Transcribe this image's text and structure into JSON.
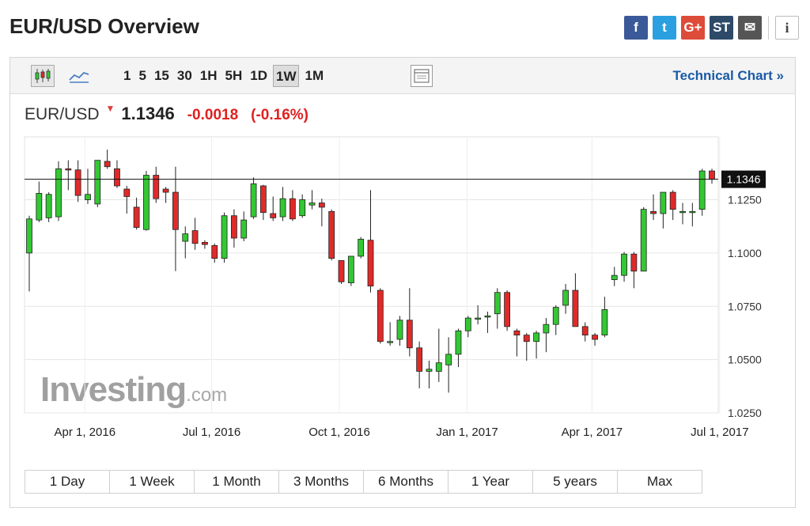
{
  "page_title": "EUR/USD Overview",
  "share_icons": [
    {
      "name": "facebook-icon",
      "glyph": "f",
      "color": "#3b5998"
    },
    {
      "name": "twitter-icon",
      "glyph": "t",
      "color": "#2ba0e0"
    },
    {
      "name": "google-plus-icon",
      "glyph": "G+",
      "color": "#dd4b39"
    },
    {
      "name": "stocktwits-icon",
      "glyph": "ST",
      "color": "#2d4a69"
    },
    {
      "name": "email-icon",
      "glyph": "✉",
      "color": "#555555"
    }
  ],
  "info_glyph": "i",
  "toolbar": {
    "periods": [
      "1",
      "5",
      "15",
      "30",
      "1H",
      "5H",
      "1D",
      "1W",
      "1M"
    ],
    "active_period": "1W",
    "technical_chart": "Technical Chart »"
  },
  "quote": {
    "symbol": "EUR/USD",
    "price": "1.1346",
    "change": "-0.0018",
    "change_pct": "(-0.16%)"
  },
  "timeframes": [
    "1 Day",
    "1 Week",
    "1 Month",
    "3 Months",
    "6 Months",
    "1 Year",
    "5 years",
    "Max"
  ],
  "watermark": {
    "main": "Investing",
    "suffix": ".com"
  },
  "colors": {
    "up": "#33c833",
    "down": "#e02a2a",
    "accent": "#1a5aa6"
  },
  "chart_data": {
    "type": "candlestick",
    "xlabel": "",
    "ylabel": "",
    "ylim": [
      1.025,
      1.1545
    ],
    "yticks": [
      "1.0250",
      "1.0500",
      "1.0750",
      "1.1000",
      "1.1250"
    ],
    "xticks": [
      "Apr 1, 2016",
      "Jul 1, 2016",
      "Oct 1, 2016",
      "Jan 1, 2017",
      "Apr 1, 2017",
      "Jul 1, 2017"
    ],
    "last_price_label": "1.1346",
    "last_price": 1.1346,
    "grid": true,
    "candles": [
      {
        "o": 1.1,
        "h": 1.1175,
        "l": 1.082,
        "c": 1.116
      },
      {
        "o": 1.1155,
        "h": 1.1335,
        "l": 1.1145,
        "c": 1.128
      },
      {
        "o": 1.1165,
        "h": 1.1285,
        "l": 1.1145,
        "c": 1.1275
      },
      {
        "o": 1.117,
        "h": 1.143,
        "l": 1.115,
        "c": 1.1395
      },
      {
        "o": 1.1395,
        "h": 1.1435,
        "l": 1.1295,
        "c": 1.139
      },
      {
        "o": 1.139,
        "h": 1.1435,
        "l": 1.124,
        "c": 1.127
      },
      {
        "o": 1.125,
        "h": 1.1395,
        "l": 1.123,
        "c": 1.1275
      },
      {
        "o": 1.123,
        "h": 1.1435,
        "l": 1.1215,
        "c": 1.1435
      },
      {
        "o": 1.143,
        "h": 1.1485,
        "l": 1.1395,
        "c": 1.1405
      },
      {
        "o": 1.1395,
        "h": 1.1435,
        "l": 1.1305,
        "c": 1.1315
      },
      {
        "o": 1.13,
        "h": 1.1315,
        "l": 1.1185,
        "c": 1.1265
      },
      {
        "o": 1.1215,
        "h": 1.126,
        "l": 1.111,
        "c": 1.112
      },
      {
        "o": 1.111,
        "h": 1.1385,
        "l": 1.1105,
        "c": 1.1365
      },
      {
        "o": 1.1365,
        "h": 1.1405,
        "l": 1.1235,
        "c": 1.1255
      },
      {
        "o": 1.13,
        "h": 1.131,
        "l": 1.1235,
        "c": 1.1285
      },
      {
        "o": 1.1285,
        "h": 1.1405,
        "l": 1.0915,
        "c": 1.111
      },
      {
        "o": 1.1055,
        "h": 1.1125,
        "l": 1.0975,
        "c": 1.109
      },
      {
        "o": 1.1105,
        "h": 1.1165,
        "l": 1.1015,
        "c": 1.1045
      },
      {
        "o": 1.105,
        "h": 1.106,
        "l": 1.102,
        "c": 1.104
      },
      {
        "o": 1.1035,
        "h": 1.1045,
        "l": 1.0955,
        "c": 1.0975
      },
      {
        "o": 1.0975,
        "h": 1.119,
        "l": 1.0955,
        "c": 1.1175
      },
      {
        "o": 1.1175,
        "h": 1.1205,
        "l": 1.1025,
        "c": 1.107
      },
      {
        "o": 1.107,
        "h": 1.1195,
        "l": 1.1055,
        "c": 1.1155
      },
      {
        "o": 1.117,
        "h": 1.1355,
        "l": 1.116,
        "c": 1.1325
      },
      {
        "o": 1.1315,
        "h": 1.132,
        "l": 1.1155,
        "c": 1.119
      },
      {
        "o": 1.1185,
        "h": 1.1265,
        "l": 1.115,
        "c": 1.1165
      },
      {
        "o": 1.117,
        "h": 1.131,
        "l": 1.115,
        "c": 1.1255
      },
      {
        "o": 1.1255,
        "h": 1.1295,
        "l": 1.115,
        "c": 1.116
      },
      {
        "o": 1.1175,
        "h": 1.1275,
        "l": 1.1165,
        "c": 1.125
      },
      {
        "o": 1.1225,
        "h": 1.1295,
        "l": 1.1205,
        "c": 1.1235
      },
      {
        "o": 1.1235,
        "h": 1.1255,
        "l": 1.1125,
        "c": 1.1215
      },
      {
        "o": 1.1195,
        "h": 1.1205,
        "l": 1.0965,
        "c": 1.0975
      },
      {
        "o": 1.0965,
        "h": 1.0965,
        "l": 1.0855,
        "c": 1.0865
      },
      {
        "o": 1.086,
        "h": 1.0985,
        "l": 1.0845,
        "c": 1.0985
      },
      {
        "o": 1.0985,
        "h": 1.1075,
        "l": 1.0975,
        "c": 1.1065
      },
      {
        "o": 1.106,
        "h": 1.1295,
        "l": 1.0815,
        "c": 1.0845
      },
      {
        "o": 1.0825,
        "h": 1.0835,
        "l": 1.0575,
        "c": 1.0585
      },
      {
        "o": 1.0585,
        "h": 1.0675,
        "l": 1.0565,
        "c": 1.0585
      },
      {
        "o": 1.0595,
        "h": 1.0705,
        "l": 1.0565,
        "c": 1.0685
      },
      {
        "o": 1.0685,
        "h": 1.0835,
        "l": 1.0515,
        "c": 1.0555
      },
      {
        "o": 1.0555,
        "h": 1.0585,
        "l": 1.0365,
        "c": 1.0445
      },
      {
        "o": 1.0445,
        "h": 1.0495,
        "l": 1.0365,
        "c": 1.0455
      },
      {
        "o": 1.0445,
        "h": 1.0645,
        "l": 1.0395,
        "c": 1.0485
      },
      {
        "o": 1.0475,
        "h": 1.0605,
        "l": 1.0345,
        "c": 1.0525
      },
      {
        "o": 1.0525,
        "h": 1.0645,
        "l": 1.0465,
        "c": 1.0635
      },
      {
        "o": 1.0635,
        "h": 1.0705,
        "l": 1.0605,
        "c": 1.0695
      },
      {
        "o": 1.0695,
        "h": 1.0755,
        "l": 1.0665,
        "c": 1.0695
      },
      {
        "o": 1.0705,
        "h": 1.0725,
        "l": 1.0625,
        "c": 1.0705
      },
      {
        "o": 1.0715,
        "h": 1.0835,
        "l": 1.0645,
        "c": 1.0815
      },
      {
        "o": 1.0815,
        "h": 1.0825,
        "l": 1.0635,
        "c": 1.0655
      },
      {
        "o": 1.0635,
        "h": 1.0645,
        "l": 1.0515,
        "c": 1.0615
      },
      {
        "o": 1.0615,
        "h": 1.0625,
        "l": 1.0495,
        "c": 1.0585
      },
      {
        "o": 1.0585,
        "h": 1.0635,
        "l": 1.0505,
        "c": 1.0625
      },
      {
        "o": 1.0625,
        "h": 1.0695,
        "l": 1.0535,
        "c": 1.0665
      },
      {
        "o": 1.0665,
        "h": 1.0755,
        "l": 1.0615,
        "c": 1.0745
      },
      {
        "o": 1.0755,
        "h": 1.0855,
        "l": 1.0715,
        "c": 1.0825
      },
      {
        "o": 1.0825,
        "h": 1.0905,
        "l": 1.0655,
        "c": 1.0655
      },
      {
        "o": 1.0655,
        "h": 1.0675,
        "l": 1.0585,
        "c": 1.0615
      },
      {
        "o": 1.0615,
        "h": 1.0625,
        "l": 1.0565,
        "c": 1.0595
      },
      {
        "o": 1.0615,
        "h": 1.0795,
        "l": 1.0605,
        "c": 1.0735
      },
      {
        "o": 1.0875,
        "h": 1.0935,
        "l": 1.0845,
        "c": 1.0895
      },
      {
        "o": 1.0895,
        "h": 1.1005,
        "l": 1.0865,
        "c": 1.0995
      },
      {
        "o": 1.0995,
        "h": 1.1005,
        "l": 1.0835,
        "c": 1.0915
      },
      {
        "o": 1.0915,
        "h": 1.1215,
        "l": 1.0915,
        "c": 1.1205
      },
      {
        "o": 1.1195,
        "h": 1.1275,
        "l": 1.1155,
        "c": 1.1185
      },
      {
        "o": 1.1185,
        "h": 1.1285,
        "l": 1.1115,
        "c": 1.1285
      },
      {
        "o": 1.1285,
        "h": 1.1295,
        "l": 1.1155,
        "c": 1.1205
      },
      {
        "o": 1.1195,
        "h": 1.1235,
        "l": 1.1135,
        "c": 1.1195
      },
      {
        "o": 1.1195,
        "h": 1.1235,
        "l": 1.1125,
        "c": 1.1195
      },
      {
        "o": 1.1205,
        "h": 1.1395,
        "l": 1.1175,
        "c": 1.1385
      },
      {
        "o": 1.1385,
        "h": 1.1395,
        "l": 1.1325,
        "c": 1.1346
      }
    ]
  }
}
